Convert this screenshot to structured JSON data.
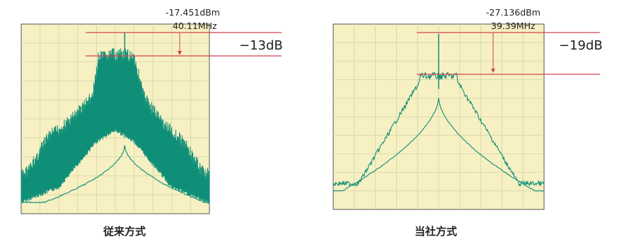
{
  "chart_data": [
    {
      "type": "line",
      "caption": "従来方式",
      "marker_level": "-17.451dBm",
      "marker_freq": "40.11MHz",
      "delta_label": "−13dB",
      "marker_peak_db": -17.451,
      "delta_db": -13,
      "colors": {
        "plot_bg": "#f6f0c2",
        "grid": "#d2d6aa",
        "trace": "#0f8f78",
        "marker_line": "#d24452"
      }
    },
    {
      "type": "line",
      "caption": "当社方式",
      "marker_level": "-27.136dBm",
      "marker_freq": "39.39MHz",
      "delta_label": "−19dB",
      "marker_peak_db": -27.136,
      "delta_db": -19,
      "colors": {
        "plot_bg": "#f6f0c2",
        "grid": "#d2d6aa",
        "trace": "#0f8f78",
        "marker_line": "#d24452"
      }
    }
  ]
}
